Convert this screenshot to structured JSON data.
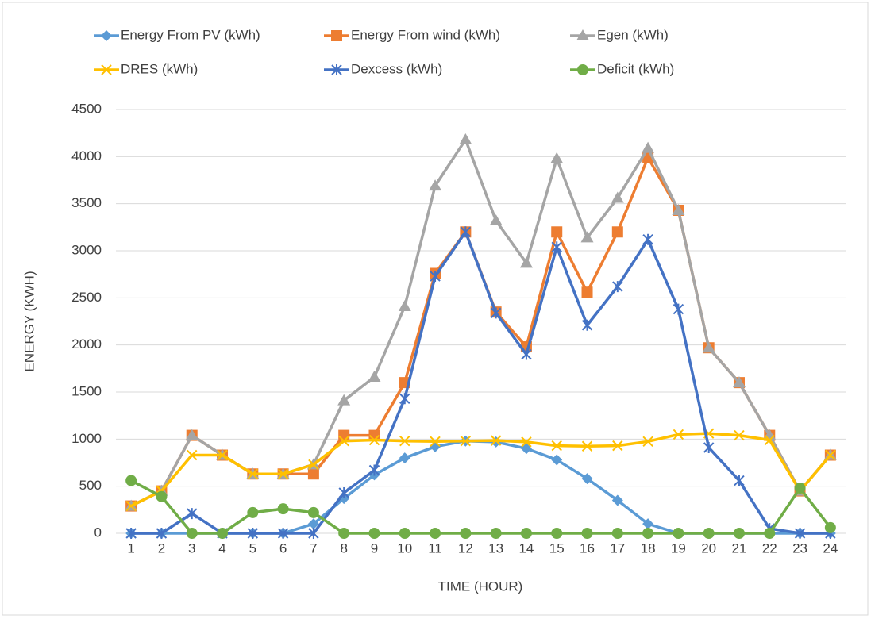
{
  "chart_data": {
    "type": "line",
    "xlabel": "TIME (HOUR)",
    "ylabel": "ENERGY (KWH)",
    "categories": [
      "1",
      "2",
      "3",
      "4",
      "5",
      "6",
      "7",
      "8",
      "9",
      "10",
      "11",
      "12",
      "13",
      "14",
      "15",
      "16",
      "17",
      "18",
      "19",
      "20",
      "21",
      "22",
      "23",
      "24"
    ],
    "ylim": [
      0,
      4500
    ],
    "yticks": [
      0,
      500,
      1000,
      1500,
      2000,
      2500,
      3000,
      3500,
      4000,
      4500
    ],
    "grid": true,
    "series": [
      {
        "name": "Energy From PV  (kWh)",
        "color": "#5b9bd5",
        "marker": "diamond",
        "values": [
          0,
          0,
          0,
          0,
          0,
          0,
          100,
          370,
          620,
          800,
          920,
          980,
          970,
          900,
          780,
          580,
          350,
          100,
          0,
          0,
          0,
          0,
          0,
          0
        ]
      },
      {
        "name": "Energy From wind  (kWh)",
        "color": "#ed7d31",
        "marker": "square",
        "values": [
          290,
          450,
          1040,
          830,
          630,
          630,
          630,
          1040,
          1040,
          1600,
          2760,
          3200,
          2350,
          1980,
          3200,
          2560,
          3200,
          3990,
          3430,
          1970,
          1600,
          1040,
          450,
          830
        ]
      },
      {
        "name": "Egen (kWh)",
        "color": "#a5a5a5",
        "marker": "triangle",
        "values": [
          290,
          450,
          1040,
          830,
          630,
          630,
          730,
          1410,
          1660,
          2410,
          3690,
          4180,
          3320,
          2870,
          3980,
          3140,
          3560,
          4090,
          3430,
          1970,
          1600,
          1040,
          450,
          830
        ]
      },
      {
        "name": "DRES (kWh)",
        "color": "#ffc000",
        "marker": "x",
        "values": [
          290,
          450,
          830,
          830,
          630,
          630,
          730,
          980,
          990,
          980,
          975,
          980,
          985,
          970,
          930,
          925,
          930,
          975,
          1050,
          1060,
          1040,
          990,
          450,
          830
        ]
      },
      {
        "name": "Dexcess (kWh)",
        "color": "#4472c4",
        "marker": "star",
        "values": [
          0,
          0,
          210,
          0,
          0,
          0,
          0,
          430,
          670,
          1430,
          2730,
          3200,
          2340,
          1900,
          3040,
          2210,
          2620,
          3120,
          2380,
          910,
          560,
          50,
          0,
          0
        ]
      },
      {
        "name": "Deficit (kWh)",
        "color": "#70ad47",
        "marker": "circle",
        "values": [
          560,
          390,
          0,
          0,
          220,
          260,
          220,
          0,
          0,
          0,
          0,
          0,
          0,
          0,
          0,
          0,
          0,
          0,
          0,
          0,
          0,
          0,
          480,
          60
        ]
      }
    ]
  }
}
